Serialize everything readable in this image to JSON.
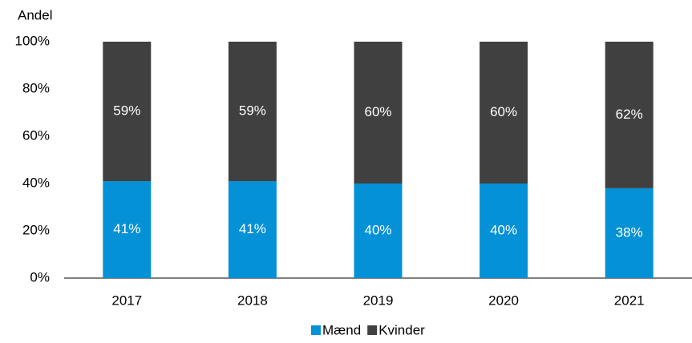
{
  "chart_data": {
    "type": "stacked_bar",
    "y_label": "Andel",
    "categories": [
      "2017",
      "2018",
      "2019",
      "2020",
      "2021"
    ],
    "series": [
      {
        "name": "Mænd",
        "color": "#0591d5",
        "values": [
          41,
          41,
          40,
          40,
          38
        ],
        "value_labels": [
          "41%",
          "41%",
          "40%",
          "40%",
          "38%"
        ]
      },
      {
        "name": "Kvinder",
        "color": "#404040",
        "values": [
          59,
          59,
          60,
          60,
          62
        ],
        "value_labels": [
          "59%",
          "59%",
          "60%",
          "60%",
          "62%"
        ]
      }
    ],
    "ylim": [
      0,
      100
    ],
    "yticks": [
      {
        "value": 0,
        "label": "0%"
      },
      {
        "value": 20,
        "label": "20%"
      },
      {
        "value": 40,
        "label": "40%"
      },
      {
        "value": 60,
        "label": "60%"
      },
      {
        "value": 80,
        "label": "80%"
      },
      {
        "value": 100,
        "label": "100%"
      }
    ],
    "grid": false,
    "legend": "bottom"
  }
}
